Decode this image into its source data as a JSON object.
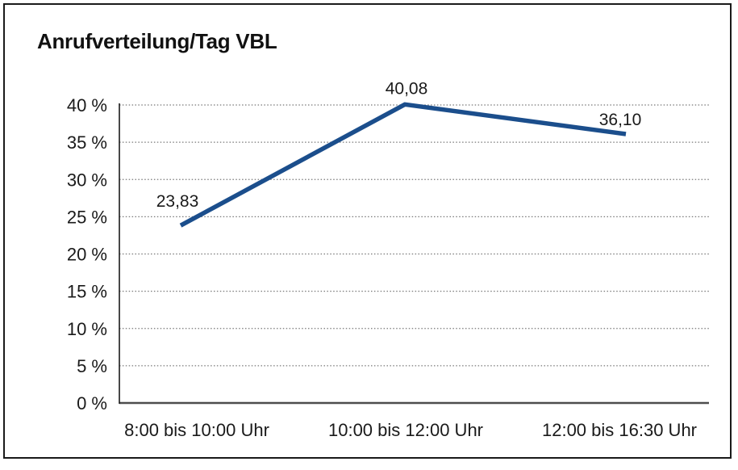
{
  "window": {
    "background": "#ffffff",
    "frame_border_color": "#1a1a1a"
  },
  "chart_data": {
    "type": "line",
    "title": "Anrufverteilung/Tag VBL",
    "categories": [
      "8:00 bis 10:00 Uhr",
      "10:00 bis 12:00 Uhr",
      "12:00 bis 16:30 Uhr"
    ],
    "series": [
      {
        "name": "Anrufverteilung/Tag VBL",
        "values": [
          23.83,
          40.08,
          36.1
        ],
        "value_labels": [
          "23,83",
          "40,08",
          "36,10"
        ],
        "color": "#1b4e8c"
      }
    ],
    "xlabel": "",
    "ylabel": "",
    "ylim": [
      0,
      40
    ],
    "ytick_step": 5,
    "ytick_labels": [
      "0 %",
      "5 %",
      "10 %",
      "15 %",
      "20 %",
      "25 %",
      "30 %",
      "35 %",
      "40 %"
    ],
    "grid": "horizontal-dotted",
    "gridline_color": "#787878",
    "axis_color": "#1a1a1a",
    "baseline_color": "#4d4d4d",
    "legend": "none"
  }
}
